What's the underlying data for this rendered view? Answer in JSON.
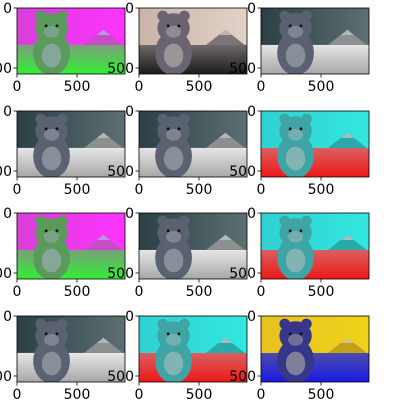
{
  "chart_data": {
    "type": "image_grid",
    "rows": 4,
    "cols": 3,
    "xticks": [
      0,
      500
    ],
    "yticks": [
      0,
      500
    ],
    "panels": [
      {
        "variant": "magenta-green"
      },
      {
        "variant": "warm-original"
      },
      {
        "variant": "natural"
      },
      {
        "variant": "natural"
      },
      {
        "variant": "natural"
      },
      {
        "variant": "red-cyan"
      },
      {
        "variant": "magenta-green"
      },
      {
        "variant": "natural"
      },
      {
        "variant": "red-cyan"
      },
      {
        "variant": "natural"
      },
      {
        "variant": "red-cyan"
      },
      {
        "variant": "yellow-blue"
      }
    ]
  },
  "palettes": {
    "natural": {
      "top": "#2b3f44",
      "topEnd": "#5d6f72",
      "ground": "#e6e6e6",
      "groundEnd": "#a7a7a7",
      "body": "#5a6170",
      "light": "#c3c7cc",
      "mtn": "#8d9091"
    },
    "warm-original": {
      "top": "#c9b3a8",
      "topEnd": "#e2d2c8",
      "ground": "#6f6868",
      "groundEnd": "#1d1b1b",
      "body": "#6b6470",
      "light": "#d6d0cf",
      "mtn": "#7d7575"
    },
    "magenta-green": {
      "top": "#d83fd8",
      "topEnd": "#ff33ff",
      "ground": "#7aa07a",
      "groundEnd": "#33ee33",
      "body": "#5a9a5a",
      "light": "#b7b7e6",
      "mtn": "#c74cc7"
    },
    "red-cyan": {
      "top": "#2ed1d1",
      "topEnd": "#33e6e0",
      "ground": "#d86060",
      "groundEnd": "#f01818",
      "body": "#3fa4a4",
      "light": "#d8c7c7",
      "mtn": "#2aa9a9"
    },
    "yellow-blue": {
      "top": "#e6c21e",
      "topEnd": "#f0d21a",
      "ground": "#4c4caa",
      "groundEnd": "#1a1ae6",
      "body": "#36368a",
      "light": "#d9d9b0",
      "mtn": "#c2a01a"
    }
  }
}
